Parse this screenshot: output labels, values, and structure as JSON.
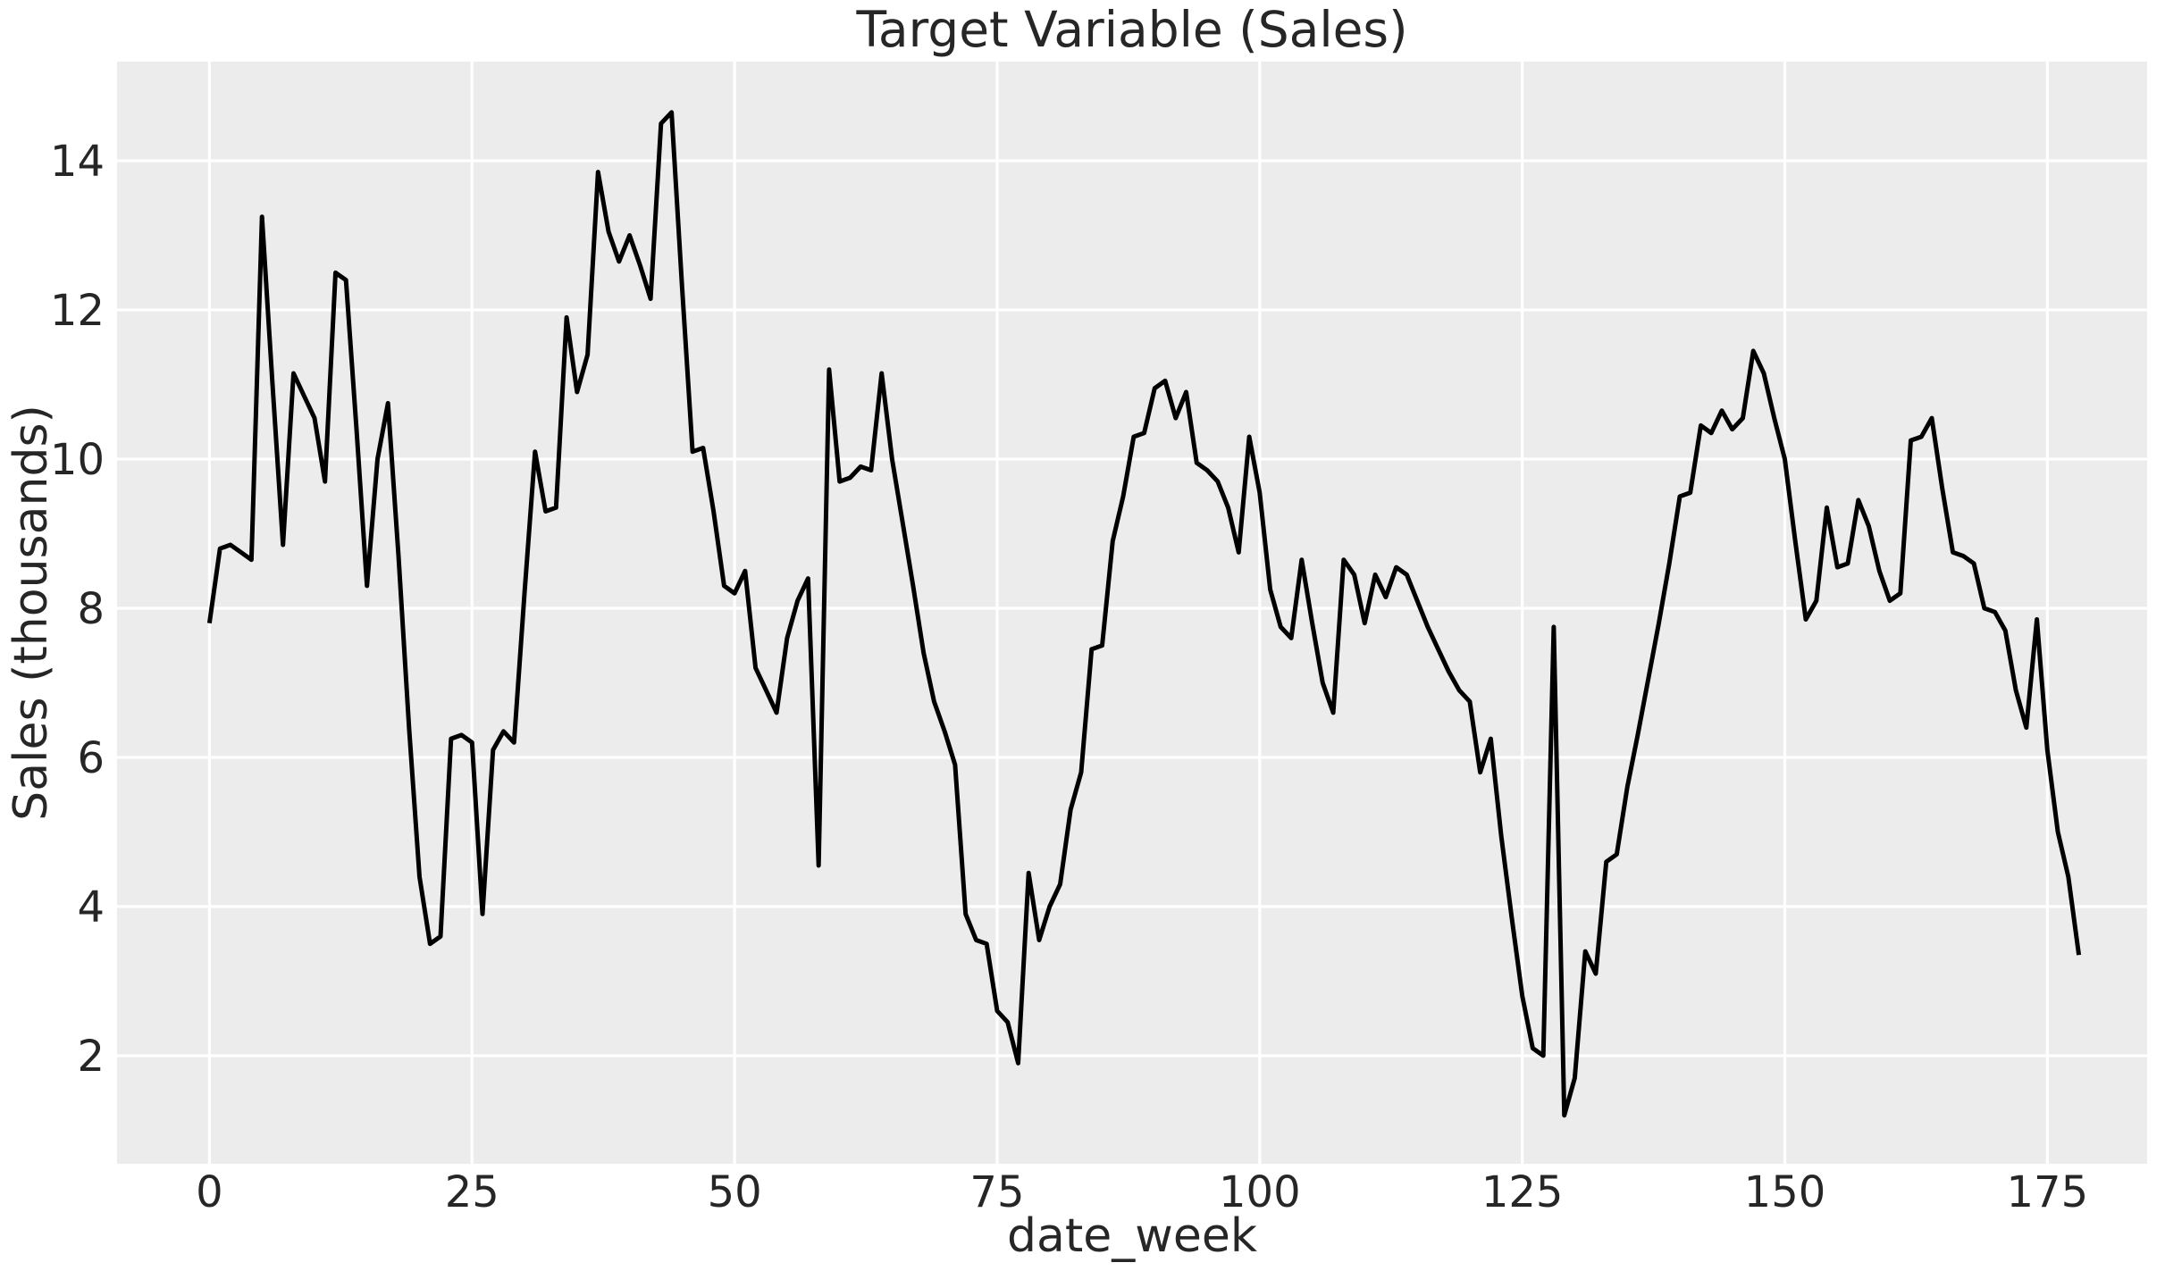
{
  "figure": {
    "background": "#ffffff",
    "plot_background": "#ececec",
    "grid_color": "#ffffff",
    "line_color": "#000000",
    "text_color": "#262626"
  },
  "chart_data": {
    "type": "line",
    "title": "Target Variable (Sales)",
    "xlabel": "date_week",
    "ylabel": "Sales (thousands)",
    "legend": null,
    "grid": true,
    "x_ticks": [
      0,
      25,
      50,
      75,
      100,
      125,
      150,
      175
    ],
    "y_ticks": [
      2,
      4,
      6,
      8,
      10,
      12,
      14
    ],
    "xlim": [
      -8.8,
      184.5
    ],
    "ylim": [
      0.55,
      15.33
    ],
    "x_start": 0,
    "x_step": 1,
    "series_name": "Sales (thousands)",
    "values": [
      7.8,
      8.8,
      8.85,
      8.75,
      8.65,
      13.25,
      11.0,
      8.85,
      11.15,
      10.85,
      10.55,
      9.7,
      12.5,
      12.4,
      10.4,
      8.3,
      10.0,
      10.75,
      8.7,
      6.4,
      4.4,
      3.5,
      3.6,
      6.25,
      6.3,
      6.2,
      3.9,
      6.1,
      6.35,
      6.2,
      8.2,
      10.1,
      9.3,
      9.35,
      11.9,
      10.9,
      11.4,
      13.85,
      13.05,
      12.65,
      13.0,
      12.6,
      12.15,
      14.5,
      14.65,
      12.3,
      10.1,
      10.15,
      9.3,
      8.3,
      8.2,
      8.5,
      7.2,
      6.9,
      6.6,
      7.6,
      8.1,
      8.4,
      4.55,
      11.2,
      9.7,
      9.75,
      9.9,
      9.85,
      11.15,
      10.0,
      9.15,
      8.3,
      7.4,
      6.75,
      6.35,
      5.9,
      3.9,
      3.55,
      3.5,
      2.6,
      2.45,
      1.9,
      4.45,
      3.55,
      4.0,
      4.3,
      5.3,
      5.8,
      7.45,
      7.5,
      8.9,
      9.5,
      10.3,
      10.35,
      10.95,
      11.05,
      10.55,
      10.9,
      9.95,
      9.85,
      9.7,
      9.35,
      8.75,
      10.3,
      9.55,
      8.25,
      7.75,
      7.6,
      8.65,
      7.8,
      7.0,
      6.6,
      8.65,
      8.45,
      7.8,
      8.45,
      8.15,
      8.55,
      8.45,
      8.1,
      7.75,
      7.45,
      7.15,
      6.9,
      6.75,
      5.8,
      6.25,
      4.95,
      3.85,
      2.8,
      2.1,
      2.0,
      7.75,
      1.2,
      1.7,
      3.4,
      3.1,
      4.6,
      4.7,
      5.6,
      6.3,
      7.05,
      7.8,
      8.6,
      9.5,
      9.55,
      10.45,
      10.35,
      10.65,
      10.4,
      10.55,
      11.45,
      11.15,
      10.55,
      10.0,
      8.9,
      7.85,
      8.1,
      9.35,
      8.55,
      8.6,
      9.45,
      9.1,
      8.5,
      8.1,
      8.2,
      10.25,
      10.3,
      10.55,
      9.6,
      8.75,
      8.7,
      8.6,
      8.0,
      7.95,
      7.7,
      6.9,
      6.4,
      7.85,
      6.1,
      5.0,
      4.4,
      3.35
    ]
  }
}
